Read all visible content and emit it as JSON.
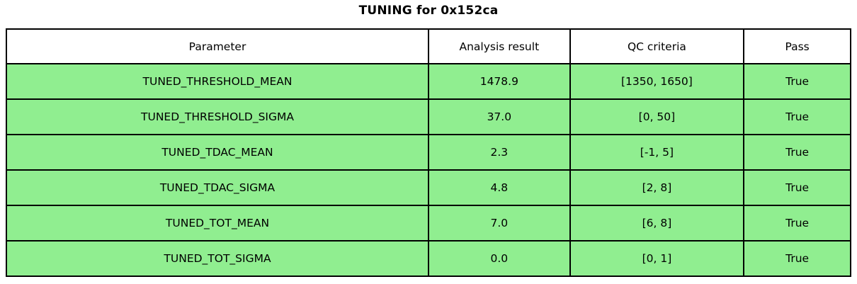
{
  "title": "TUNING for 0x152ca",
  "colors": {
    "row_background": "#90EE90",
    "header_background": "#FFFFFF",
    "border": "#000000",
    "text": "#000000"
  },
  "table": {
    "columns": [
      "Parameter",
      "Analysis result",
      "QC criteria",
      "Pass"
    ],
    "rows": [
      {
        "parameter": "TUNED_THRESHOLD_MEAN",
        "result": "1478.9",
        "criteria": "[1350, 1650]",
        "pass": "True"
      },
      {
        "parameter": "TUNED_THRESHOLD_SIGMA",
        "result": "37.0",
        "criteria": "[0, 50]",
        "pass": "True"
      },
      {
        "parameter": "TUNED_TDAC_MEAN",
        "result": "2.3",
        "criteria": "[-1, 5]",
        "pass": "True"
      },
      {
        "parameter": "TUNED_TDAC_SIGMA",
        "result": "4.8",
        "criteria": "[2, 8]",
        "pass": "True"
      },
      {
        "parameter": "TUNED_TOT_MEAN",
        "result": "7.0",
        "criteria": "[6, 8]",
        "pass": "True"
      },
      {
        "parameter": "TUNED_TOT_SIGMA",
        "result": "0.0",
        "criteria": "[0, 1]",
        "pass": "True"
      }
    ]
  },
  "chart_data": {
    "type": "table",
    "title": "TUNING for 0x152ca",
    "columns": [
      "Parameter",
      "Analysis result",
      "QC criteria",
      "Pass"
    ],
    "rows": [
      [
        "TUNED_THRESHOLD_MEAN",
        "1478.9",
        "[1350, 1650]",
        "True"
      ],
      [
        "TUNED_THRESHOLD_SIGMA",
        "37.0",
        "[0, 50]",
        "True"
      ],
      [
        "TUNED_TDAC_MEAN",
        "2.3",
        "[-1, 5]",
        "True"
      ],
      [
        "TUNED_TDAC_SIGMA",
        "4.8",
        "[2, 8]",
        "True"
      ],
      [
        "TUNED_TOT_MEAN",
        "7.0",
        "[6, 8]",
        "True"
      ],
      [
        "TUNED_TOT_SIGMA",
        "0.0",
        "[0, 1]",
        "True"
      ]
    ],
    "layout": {
      "title_position": "top-center",
      "header_background": "#FFFFFF",
      "row_background": "#90EE90",
      "cell_text_align": "center",
      "grid": true
    }
  }
}
